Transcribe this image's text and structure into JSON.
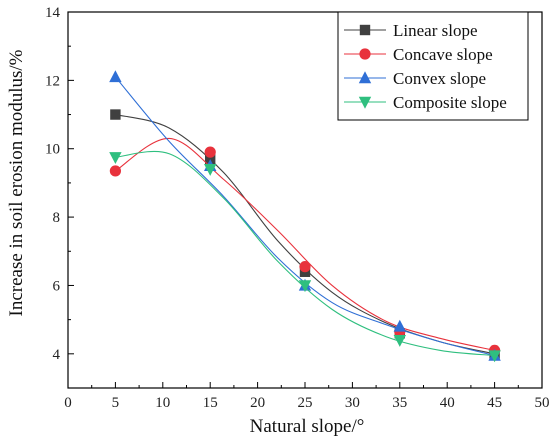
{
  "chart_data": {
    "type": "line",
    "title": "",
    "xlabel": "Natural slope/°",
    "ylabel": "Increase in soil erosion modulus/%",
    "xlim": [
      0,
      50
    ],
    "ylim": [
      3,
      14
    ],
    "xticks": [
      0,
      5,
      10,
      15,
      20,
      25,
      30,
      35,
      40,
      45,
      50
    ],
    "yticks": [
      4,
      6,
      8,
      10,
      12,
      14
    ],
    "grid": false,
    "legend_position": "top-right",
    "x": [
      5,
      15,
      25,
      35,
      45
    ],
    "series": [
      {
        "name": "Linear slope",
        "color": "#404040",
        "marker": "square",
        "values": [
          11.0,
          9.7,
          6.4,
          4.6,
          4.0
        ],
        "curve": [
          11.0,
          10.6,
          9.3,
          7.3,
          5.8,
          4.9,
          4.35,
          4.0
        ]
      },
      {
        "name": "Concave slope",
        "color": "#e8323c",
        "marker": "circle",
        "values": [
          9.35,
          9.9,
          6.55,
          4.65,
          4.1
        ],
        "curve": [
          9.35,
          10.3,
          9.1,
          7.6,
          6.0,
          4.95,
          4.45,
          4.1
        ]
      },
      {
        "name": "Convex slope",
        "color": "#2f6fd6",
        "marker": "triangle-up",
        "values": [
          12.1,
          9.5,
          6.0,
          4.8,
          3.95
        ],
        "curve": [
          12.1,
          10.2,
          8.6,
          6.8,
          5.5,
          4.85,
          4.35,
          3.95
        ]
      },
      {
        "name": "Composite slope",
        "color": "#2fbf7f",
        "marker": "triangle-down",
        "values": [
          9.75,
          9.4,
          6.0,
          4.4,
          3.95
        ],
        "curve": [
          9.75,
          9.85,
          8.55,
          6.7,
          5.3,
          4.5,
          4.1,
          3.95
        ]
      }
    ]
  }
}
